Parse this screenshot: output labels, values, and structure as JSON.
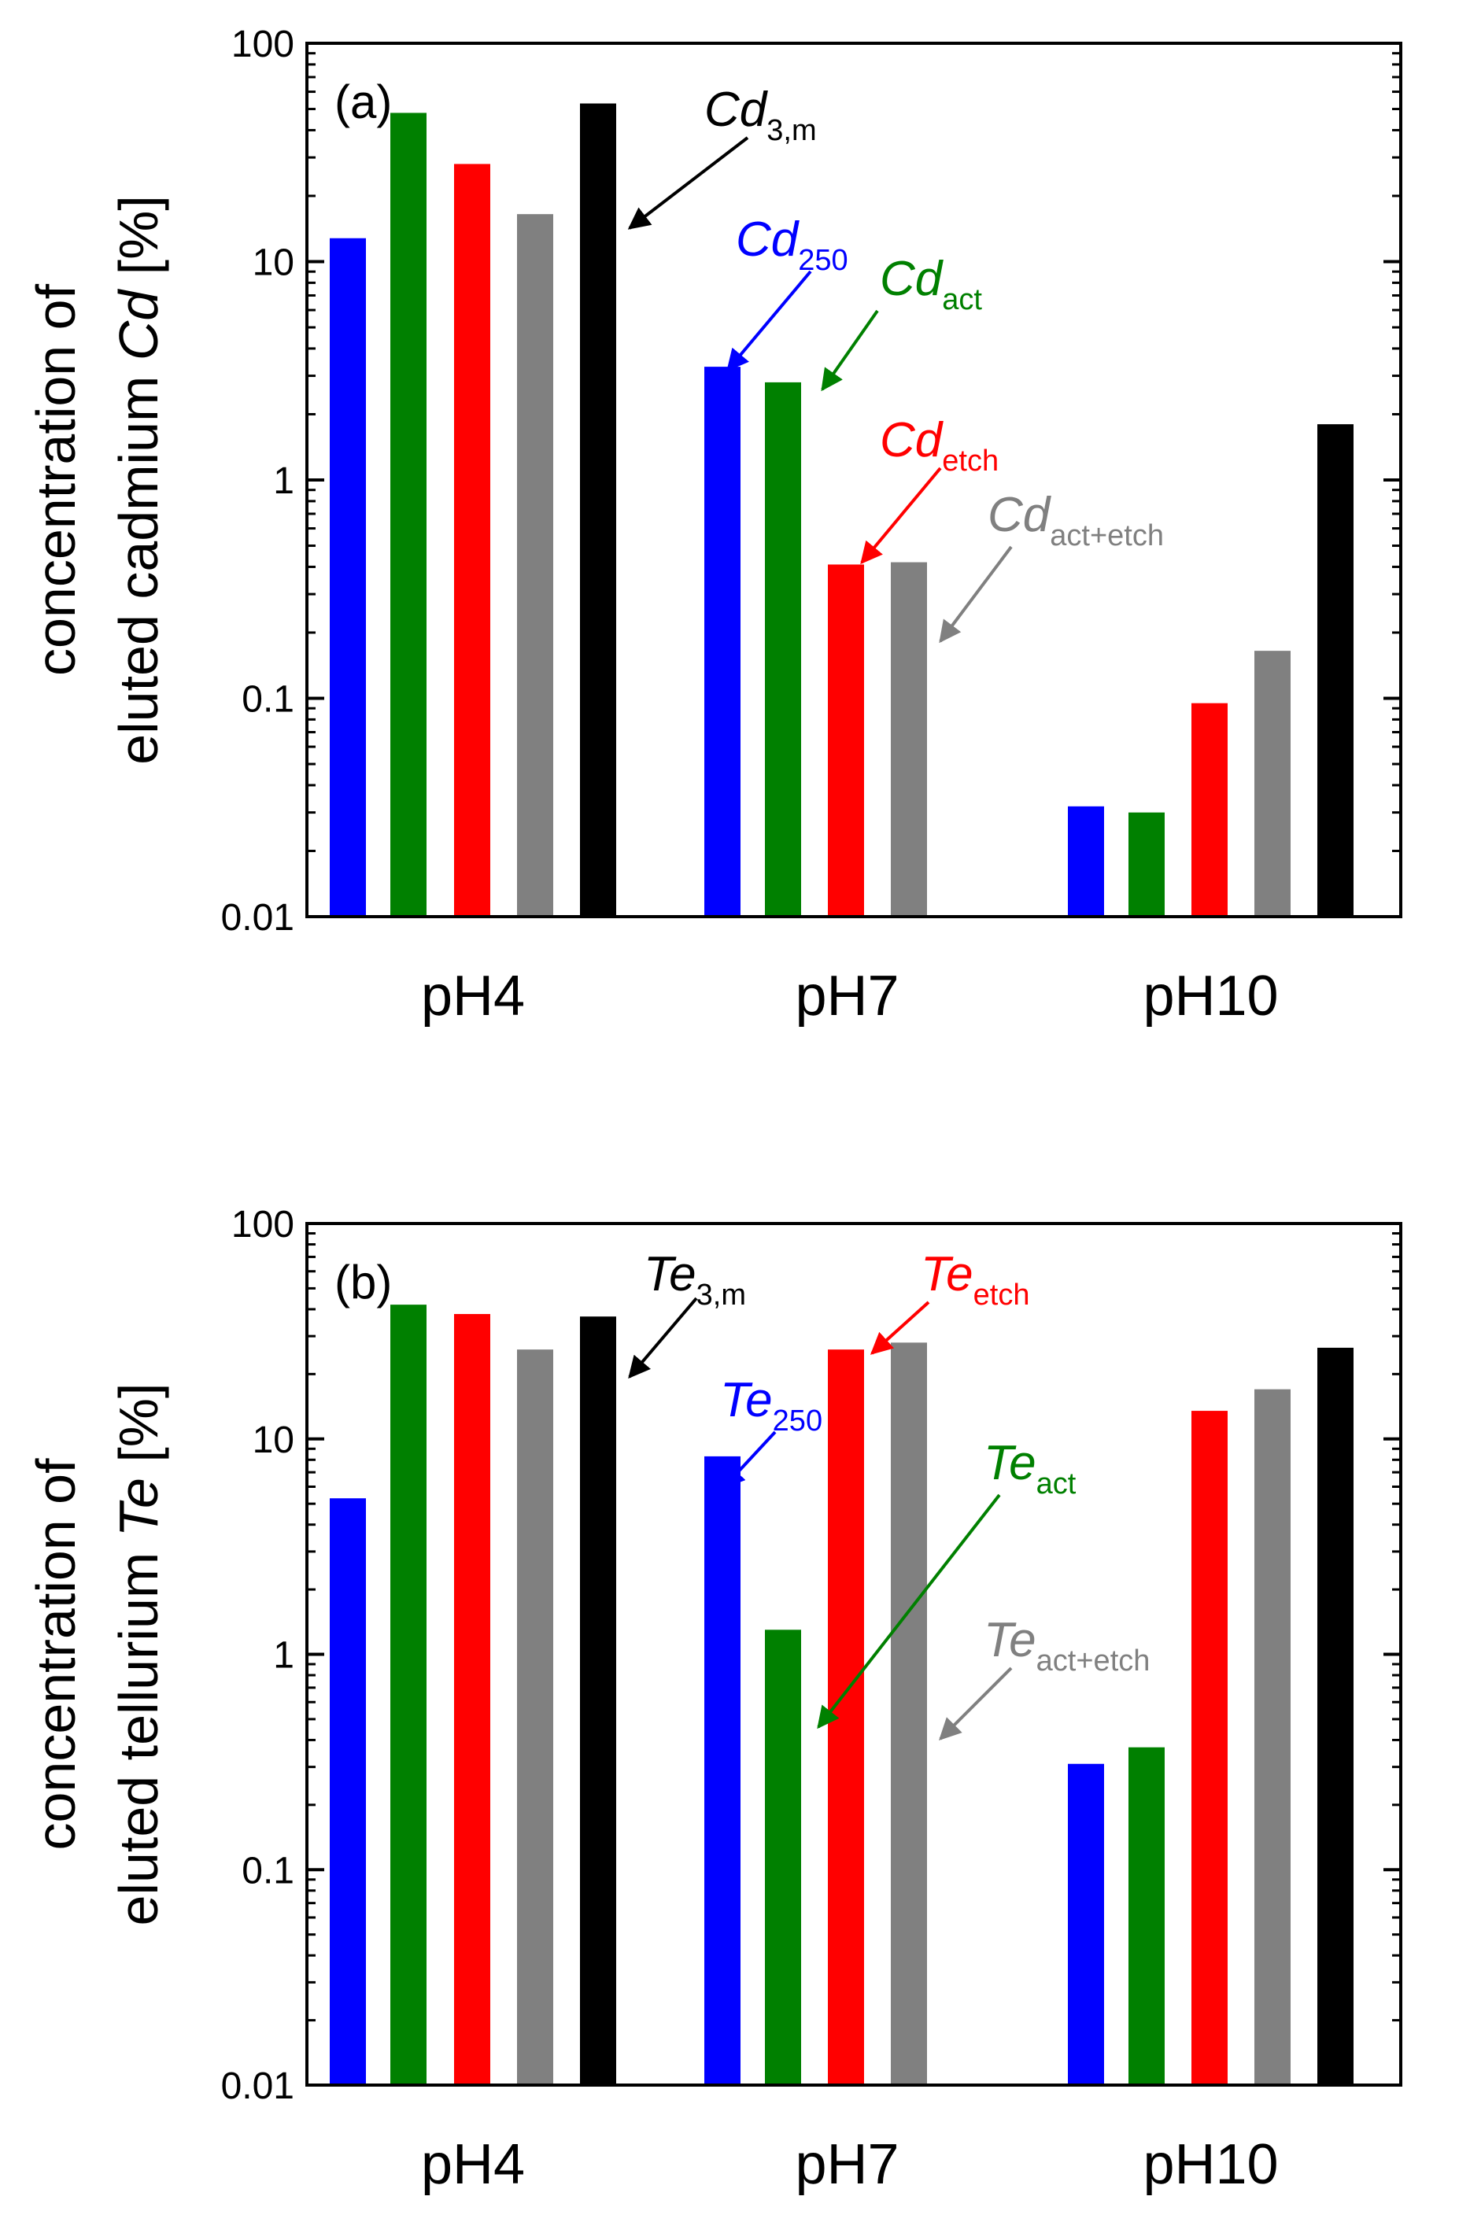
{
  "chart_data": [
    {
      "type": "bar",
      "panel_label": "(a)",
      "ylabel": {
        "prefix": "concentration of",
        "main": "eluted cadmium ",
        "symbol": "Cd",
        "unit": " [%]"
      },
      "yscale": "log",
      "ylim": [
        0.01,
        100
      ],
      "yticks": [
        "0.01",
        "0.1",
        "1",
        "10",
        "100"
      ],
      "categories": [
        "pH4",
        "pH7",
        "pH10"
      ],
      "series": [
        {
          "name": "Cd250",
          "color": "#0000ff",
          "values": [
            12.8,
            3.3,
            0.032
          ]
        },
        {
          "name": "Cdact",
          "color": "#008000",
          "values": [
            48,
            2.8,
            0.03
          ]
        },
        {
          "name": "Cdetch",
          "color": "#ff0000",
          "values": [
            28,
            0.41,
            0.095
          ]
        },
        {
          "name": "Cdact+etch",
          "color": "#808080",
          "values": [
            16.5,
            0.42,
            0.165
          ]
        },
        {
          "name": "Cd3,m",
          "color": "#000000",
          "values": [
            53,
            null,
            1.8
          ]
        }
      ],
      "annotations": [
        {
          "main": "Cd",
          "sub": "3,m",
          "color": "#000000"
        },
        {
          "main": "Cd",
          "sub": "250",
          "color": "#0000ff"
        },
        {
          "main": "Cd",
          "sub": "act",
          "color": "#008000"
        },
        {
          "main": "Cd",
          "sub": "etch",
          "color": "#ff0000"
        },
        {
          "main": "Cd",
          "sub": "act+etch",
          "color": "#808080"
        }
      ]
    },
    {
      "type": "bar",
      "panel_label": "(b)",
      "ylabel": {
        "prefix": "concentration of",
        "main": "eluted tellurium ",
        "symbol": "Te",
        "unit": " [%]"
      },
      "yscale": "log",
      "ylim": [
        0.01,
        100
      ],
      "yticks": [
        "0.01",
        "0.1",
        "1",
        "10",
        "100"
      ],
      "categories": [
        "pH4",
        "pH7",
        "pH10"
      ],
      "series": [
        {
          "name": "Te250",
          "color": "#0000ff",
          "values": [
            5.3,
            8.3,
            0.31
          ]
        },
        {
          "name": "Teact",
          "color": "#008000",
          "values": [
            42,
            1.3,
            0.37
          ]
        },
        {
          "name": "Teetch",
          "color": "#ff0000",
          "values": [
            38,
            26,
            13.5
          ]
        },
        {
          "name": "Teact+etch",
          "color": "#808080",
          "values": [
            26,
            28,
            17
          ]
        },
        {
          "name": "Te3,m",
          "color": "#000000",
          "values": [
            37,
            null,
            26.5
          ]
        }
      ],
      "annotations": [
        {
          "main": "Te",
          "sub": "3,m",
          "color": "#000000"
        },
        {
          "main": "Te",
          "sub": "etch",
          "color": "#ff0000"
        },
        {
          "main": "Te",
          "sub": "250",
          "color": "#0000ff"
        },
        {
          "main": "Te",
          "sub": "act",
          "color": "#008000"
        },
        {
          "main": "Te",
          "sub": "act+etch",
          "color": "#808080"
        }
      ]
    }
  ]
}
